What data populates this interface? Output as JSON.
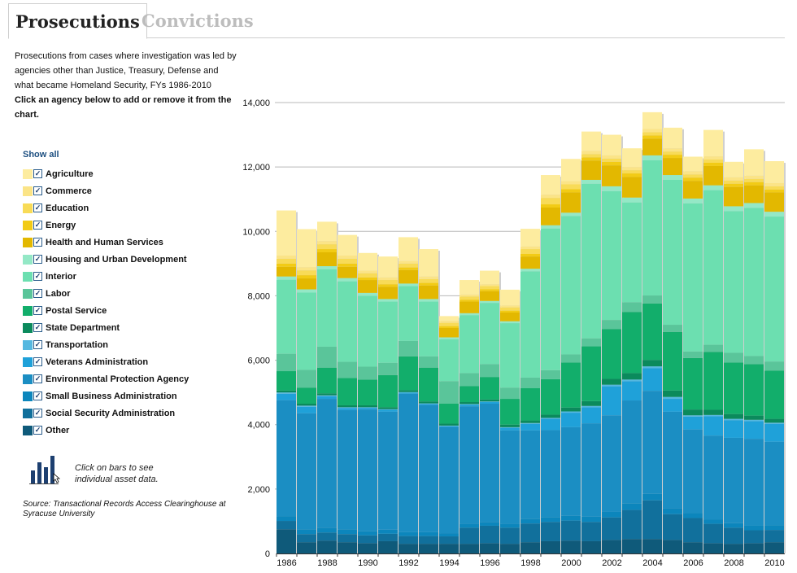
{
  "tabs": {
    "prosecutions": "Prosecutions",
    "convictions": "Convictions"
  },
  "description": {
    "text": "Prosecutions from cases where investigation was led by agencies other than Justice, Treasury, Defense and what became Homeland Security, FYs 1986-2010",
    "instruction": "Click an agency below to add or remove it from the chart."
  },
  "show_all": "Show all",
  "hint": "Click on bars to see individual asset data.",
  "source": "Source: Transactional Records Access Clearinghouse at Syracuse University",
  "chart_data": {
    "type": "bar",
    "stacked": true,
    "title": "",
    "xlabel": "",
    "ylabel": "",
    "ylim": [
      0,
      14000
    ],
    "yticks": [
      0,
      2000,
      4000,
      6000,
      8000,
      10000,
      12000,
      14000
    ],
    "ytick_labels": [
      "0",
      "2,000",
      "4,000",
      "6,000",
      "8,000",
      "10,000",
      "12,000",
      "14,000"
    ],
    "xtick_labels": [
      "1986",
      "1988",
      "1990",
      "1992",
      "1994",
      "1996",
      "1998",
      "2000",
      "2002",
      "2004",
      "2006",
      "2008",
      "2010"
    ],
    "categories": [
      "1986",
      "1987",
      "1988",
      "1989",
      "1990",
      "1991",
      "1992",
      "1993",
      "1994",
      "1995",
      "1996",
      "1997",
      "1998",
      "1999",
      "2000",
      "2001",
      "2002",
      "2003",
      "2004",
      "2005",
      "2006",
      "2007",
      "2008",
      "2009",
      "2010"
    ],
    "series": [
      {
        "name": "Other",
        "color": "#0f5a7a",
        "values": [
          750,
          350,
          400,
          350,
          320,
          380,
          300,
          300,
          300,
          300,
          320,
          300,
          350,
          380,
          400,
          380,
          420,
          450,
          450,
          420,
          350,
          320,
          300,
          320,
          350
        ]
      },
      {
        "name": "Social Security Administration",
        "color": "#11709c",
        "values": [
          260,
          250,
          250,
          250,
          240,
          230,
          240,
          240,
          230,
          500,
          540,
          500,
          580,
          600,
          620,
          600,
          700,
          900,
          1200,
          800,
          750,
          600,
          500,
          400,
          380
        ]
      },
      {
        "name": "Small Business Administration",
        "color": "#0c86bc",
        "values": [
          150,
          150,
          150,
          150,
          130,
          130,
          120,
          120,
          100,
          120,
          120,
          120,
          140,
          150,
          150,
          160,
          170,
          200,
          200,
          180,
          150,
          140,
          140,
          140,
          140
        ]
      },
      {
        "name": "Environmental Protection Agency",
        "color": "#1b8ec3",
        "values": [
          3600,
          3600,
          4000,
          3700,
          3780,
          3660,
          4300,
          3950,
          3300,
          3650,
          3670,
          2900,
          2750,
          2700,
          2750,
          2900,
          3000,
          3200,
          3200,
          3000,
          2600,
          2600,
          2650,
          2700,
          2600
        ]
      },
      {
        "name": "Veterans Administration",
        "color": "#1fa1d9",
        "values": [
          200,
          200,
          80,
          60,
          50,
          60,
          30,
          30,
          20,
          50,
          50,
          80,
          200,
          350,
          450,
          500,
          900,
          600,
          700,
          400,
          400,
          600,
          550,
          550,
          550
        ]
      },
      {
        "name": "Transportation",
        "color": "#55b8e0",
        "values": [
          40,
          40,
          30,
          30,
          20,
          20,
          20,
          20,
          20,
          20,
          20,
          20,
          30,
          30,
          40,
          40,
          50,
          50,
          60,
          60,
          40,
          40,
          40,
          40,
          40
        ]
      },
      {
        "name": "State Department",
        "color": "#0b8a5c",
        "values": [
          60,
          60,
          60,
          60,
          60,
          60,
          60,
          60,
          60,
          60,
          60,
          80,
          80,
          100,
          120,
          150,
          180,
          200,
          200,
          200,
          180,
          160,
          150,
          130,
          120
        ]
      },
      {
        "name": "Postal Service",
        "color": "#12ae6b",
        "values": [
          600,
          500,
          800,
          850,
          800,
          1000,
          1050,
          1050,
          620,
          500,
          700,
          800,
          1000,
          1100,
          1400,
          1700,
          1550,
          1900,
          1750,
          1820,
          1600,
          1800,
          1600,
          1600,
          1500
        ]
      },
      {
        "name": "Labor",
        "color": "#5ac59a",
        "values": [
          540,
          550,
          650,
          500,
          400,
          380,
          480,
          350,
          700,
          400,
          400,
          350,
          330,
          280,
          250,
          250,
          280,
          300,
          250,
          220,
          200,
          220,
          300,
          250,
          280
        ]
      },
      {
        "name": "Interior",
        "color": "#6cdfb0",
        "values": [
          2300,
          2400,
          2400,
          2500,
          2200,
          1900,
          1700,
          1700,
          1300,
          1800,
          1900,
          2000,
          3300,
          4400,
          4300,
          4800,
          4000,
          3100,
          4200,
          4500,
          4600,
          4800,
          4400,
          4600,
          4500
        ]
      },
      {
        "name": "Housing and Urban Development",
        "color": "#94e8c6",
        "values": [
          100,
          100,
          100,
          100,
          90,
          80,
          80,
          80,
          60,
          60,
          60,
          60,
          80,
          100,
          100,
          120,
          150,
          150,
          150,
          150,
          150,
          150,
          150,
          150,
          150
        ]
      },
      {
        "name": "Health and Human Services",
        "color": "#e3b800",
        "values": [
          300,
          340,
          430,
          350,
          400,
          380,
          420,
          420,
          290,
          360,
          300,
          270,
          380,
          550,
          630,
          600,
          650,
          640,
          520,
          530,
          550,
          600,
          600,
          550,
          600
        ]
      },
      {
        "name": "Energy",
        "color": "#f2cb15",
        "values": [
          100,
          100,
          100,
          100,
          80,
          80,
          80,
          80,
          60,
          60,
          60,
          60,
          80,
          100,
          100,
          100,
          110,
          110,
          100,
          100,
          100,
          100,
          100,
          100,
          90
        ]
      },
      {
        "name": "Education",
        "color": "#f8db57",
        "values": [
          150,
          150,
          150,
          150,
          130,
          130,
          120,
          120,
          100,
          100,
          100,
          100,
          150,
          200,
          150,
          100,
          100,
          100,
          100,
          100,
          100,
          100,
          100,
          100,
          100
        ]
      },
      {
        "name": "Commerce",
        "color": "#fbe487",
        "values": [
          100,
          100,
          100,
          100,
          80,
          80,
          80,
          80,
          60,
          60,
          60,
          60,
          80,
          100,
          100,
          100,
          100,
          100,
          100,
          100,
          100,
          100,
          100,
          100,
          100
        ]
      },
      {
        "name": "Agriculture",
        "color": "#fdec9f",
        "values": [
          1400,
          1180,
          600,
          640,
          550,
          650,
          740,
          850,
          150,
          450,
          420,
          490,
          550,
          610,
          690,
          600,
          640,
          580,
          520,
          640,
          450,
          820,
          480,
          820,
          680
        ]
      }
    ]
  }
}
